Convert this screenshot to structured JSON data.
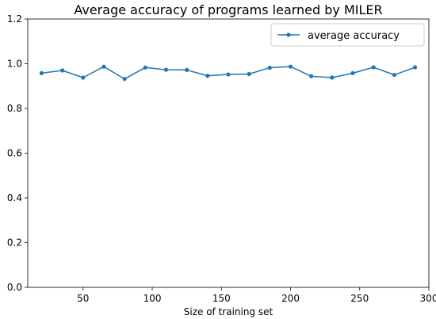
{
  "chart_data": {
    "type": "line",
    "title": "Average accuracy of programs learned by MILER",
    "xlabel": "Size of training set",
    "ylabel": "",
    "xlim": [
      10,
      300
    ],
    "ylim": [
      0.0,
      1.2
    ],
    "xticks": [
      50,
      100,
      150,
      200,
      250,
      300
    ],
    "yticks": [
      0.0,
      0.2,
      0.4,
      0.6,
      0.8,
      1.0,
      1.2
    ],
    "xtick_labels": [
      "50",
      "100",
      "150",
      "200",
      "250",
      "300"
    ],
    "ytick_labels": [
      "0.0",
      "0.2",
      "0.4",
      "0.6",
      "0.8",
      "1.0",
      "1.2"
    ],
    "grid": false,
    "legend_position": "top-right",
    "series": [
      {
        "name": "average accuracy",
        "color": "#1f77b4",
        "marker": "circle",
        "x": [
          20,
          35,
          50,
          65,
          80,
          95,
          110,
          125,
          140,
          155,
          170,
          185,
          200,
          215,
          230,
          245,
          260,
          275,
          290
        ],
        "y": [
          0.958,
          0.97,
          0.938,
          0.987,
          0.932,
          0.983,
          0.973,
          0.972,
          0.946,
          0.952,
          0.954,
          0.982,
          0.987,
          0.944,
          0.938,
          0.958,
          0.984,
          0.95,
          0.984
        ]
      }
    ]
  }
}
